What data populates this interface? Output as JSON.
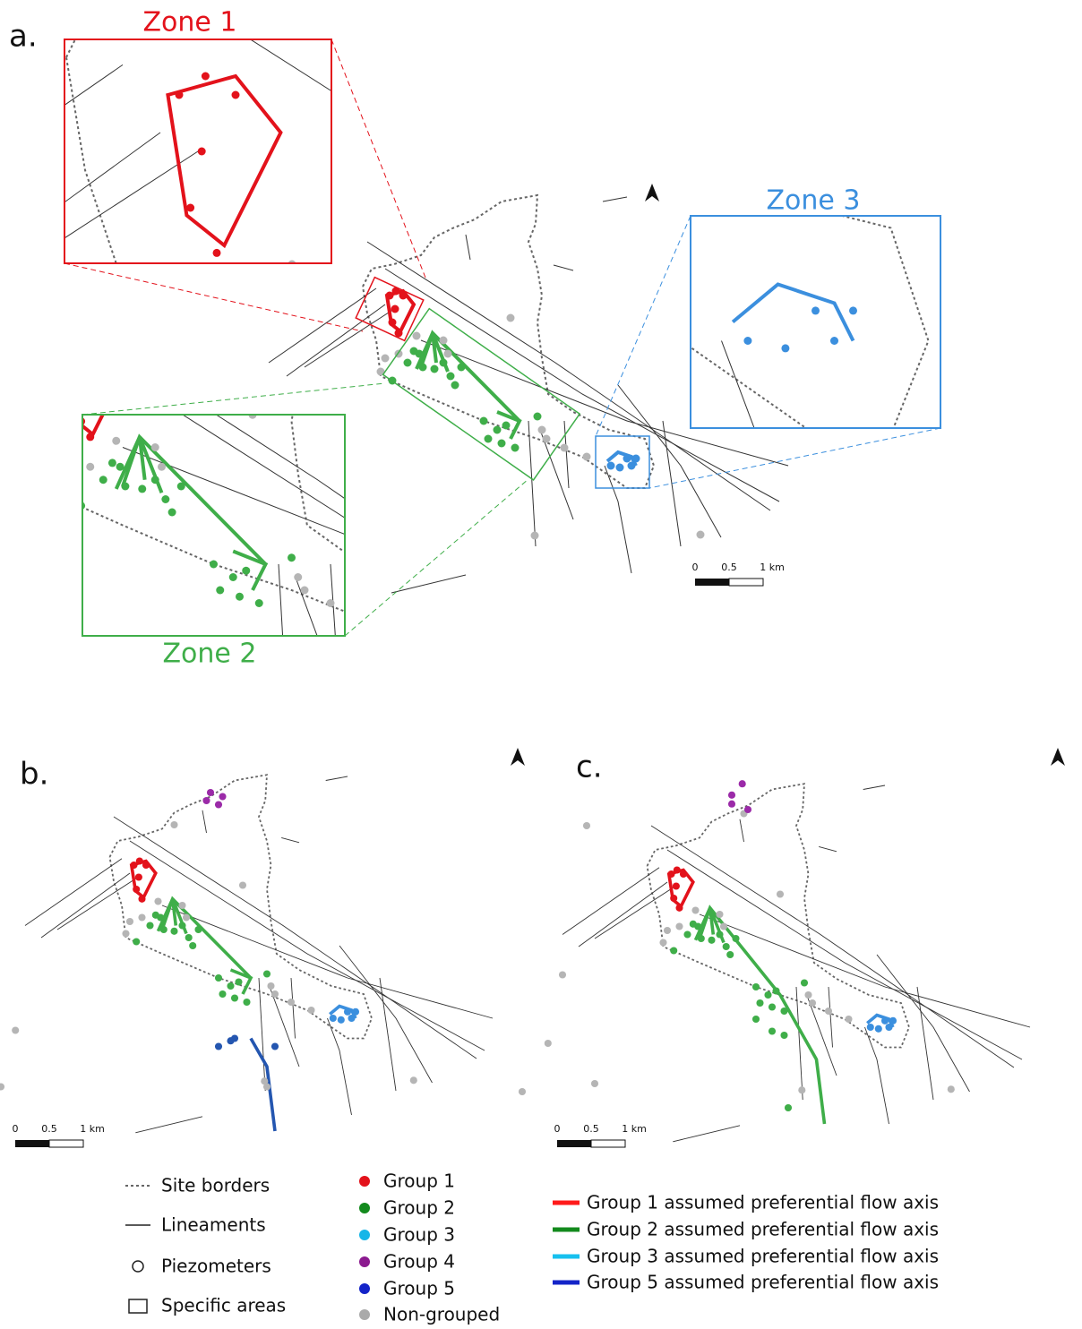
{
  "panels": [
    {
      "label": "a.",
      "zones": [
        "Zone 1",
        "Zone 2",
        "Zone 3"
      ],
      "scale": [
        "0",
        "0.5",
        "1 km"
      ]
    },
    {
      "label": "b.",
      "scale": [
        "0",
        "0.5",
        "1 km"
      ]
    },
    {
      "label": "c.",
      "scale": [
        "0",
        "0.5",
        "1 km"
      ]
    }
  ],
  "legend": {
    "symbols": [
      "Site borders",
      "Lineaments",
      "Piezometers",
      "Specific areas"
    ],
    "groups": [
      "Group 1",
      "Group 2",
      "Group 3",
      "Group 4",
      "Group 5",
      "Non-grouped"
    ],
    "flow_axes": [
      "Group 1 assumed preferential flow axis",
      "Group 2 assumed preferential flow axis",
      "Group 3 assumed preferential flow axis",
      "Group 5 assumed preferential flow axis"
    ]
  }
}
